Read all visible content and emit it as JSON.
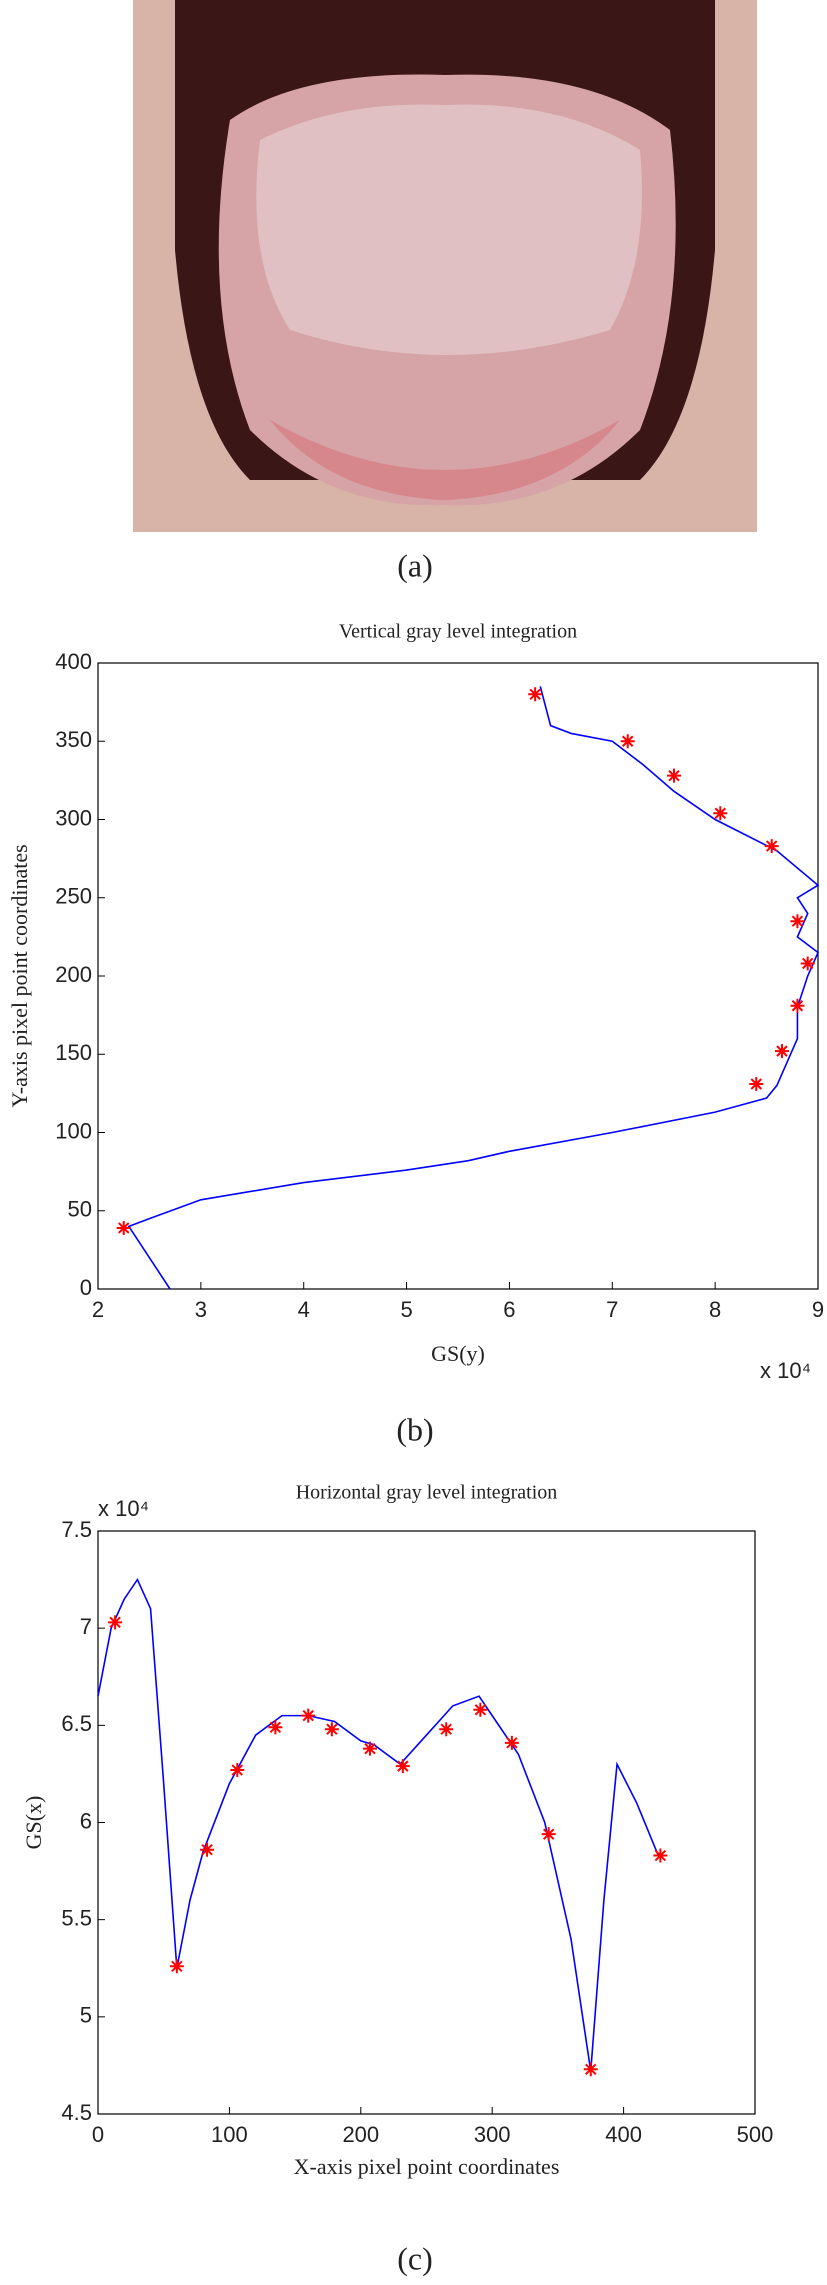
{
  "figure": {
    "captions": [
      "(a)",
      "(b)",
      "(c)"
    ]
  },
  "chart_data": [
    {
      "type": "line",
      "title": "Vertical gray level integration",
      "x_label": "GS(y)",
      "y_label": "Y-axis pixel point coordinates",
      "x_multiplier": "x 10⁴",
      "xlim": [
        2,
        9
      ],
      "xticks": [
        2,
        3,
        4,
        5,
        6,
        7,
        8,
        9
      ],
      "ylim": [
        0,
        400
      ],
      "yticks": [
        0,
        50,
        100,
        150,
        200,
        250,
        300,
        350,
        400
      ],
      "series": [
        {
          "style": "line",
          "color": "#0000ff",
          "x": [
            2.7,
            2.3,
            2.5,
            3.0,
            4.0,
            5.0,
            5.6,
            6.0,
            7.0,
            8.0,
            8.5,
            8.6,
            8.7,
            8.8,
            8.8,
            8.9,
            9.0,
            8.8,
            8.9,
            8.8,
            9.0,
            8.6,
            8.0,
            7.6,
            7.3,
            7.0,
            6.6,
            6.4,
            6.3
          ],
          "values": [
            0,
            40,
            45,
            57,
            68,
            76,
            82,
            88,
            100,
            113,
            122,
            130,
            145,
            160,
            180,
            200,
            215,
            225,
            240,
            250,
            258,
            280,
            300,
            318,
            335,
            350,
            355,
            360,
            385
          ]
        },
        {
          "style": "marker",
          "color": "#ff0000",
          "x": [
            6.25,
            7.15,
            7.6,
            8.05,
            8.55,
            8.8,
            8.9,
            8.8,
            8.65,
            8.4,
            2.25
          ],
          "values": [
            380,
            350,
            328,
            304,
            283,
            235,
            208,
            181,
            152,
            131,
            39
          ]
        }
      ]
    },
    {
      "type": "line",
      "title": "Horizontal gray level integration",
      "x_label": "X-axis pixel point coordinates",
      "y_label": "GS(x)",
      "y_multiplier": "x 10⁴",
      "xlim": [
        0,
        500
      ],
      "xticks": [
        0,
        100,
        200,
        300,
        400,
        500
      ],
      "ylim": [
        4.5,
        7.5
      ],
      "yticks": [
        4.5,
        5,
        5.5,
        6,
        6.5,
        7,
        7.5
      ],
      "series": [
        {
          "style": "line",
          "color": "#0000ff",
          "x": [
            0,
            10,
            20,
            30,
            40,
            50,
            60,
            70,
            80,
            100,
            120,
            140,
            160,
            180,
            200,
            210,
            230,
            250,
            270,
            290,
            300,
            320,
            340,
            360,
            375,
            385,
            395,
            410,
            427
          ],
          "values": [
            6.65,
            7.0,
            7.15,
            7.25,
            7.1,
            6.2,
            5.25,
            5.6,
            5.85,
            6.2,
            6.45,
            6.55,
            6.55,
            6.52,
            6.42,
            6.4,
            6.3,
            6.45,
            6.6,
            6.65,
            6.55,
            6.35,
            6.0,
            5.4,
            4.72,
            5.6,
            6.3,
            6.1,
            5.82
          ]
        },
        {
          "style": "marker",
          "color": "#ff0000",
          "x": [
            13,
            60,
            83,
            106,
            135,
            160,
            178,
            207,
            232,
            265,
            291,
            315,
            343,
            375,
            428
          ],
          "values": [
            7.03,
            5.26,
            5.86,
            6.27,
            6.49,
            6.55,
            6.48,
            6.38,
            6.29,
            6.48,
            6.58,
            6.41,
            5.94,
            4.73,
            5.83
          ]
        }
      ]
    }
  ]
}
